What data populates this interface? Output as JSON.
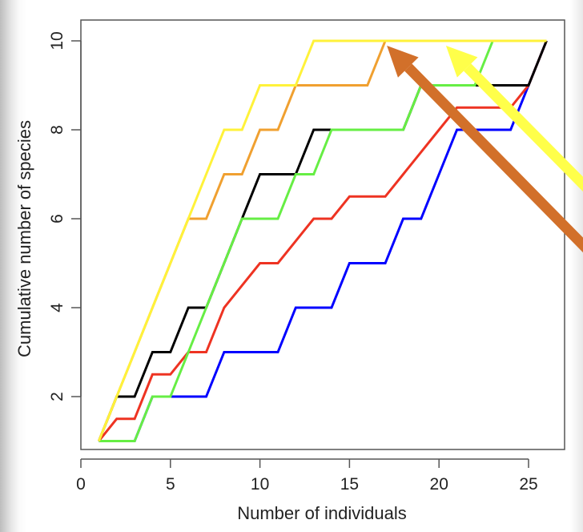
{
  "chart_data": {
    "type": "line",
    "title": "",
    "xlabel": "Number of individuals",
    "ylabel": "Cumulative number of species",
    "xlim": [
      0,
      27
    ],
    "ylim": [
      0.8,
      10.5
    ],
    "xticks": [
      "0",
      "5",
      "10",
      "15",
      "20",
      "25"
    ],
    "yticks": [
      "2",
      "4",
      "6",
      "8",
      "10"
    ],
    "grid": false,
    "x": [
      1,
      2,
      3,
      4,
      5,
      6,
      7,
      8,
      9,
      10,
      11,
      12,
      13,
      14,
      15,
      16,
      17,
      18,
      19,
      20,
      21,
      22,
      23,
      24,
      25,
      26
    ],
    "series": [
      {
        "color": "#0000FF",
        "values": [
          1,
          1,
          1,
          2,
          2,
          2,
          2,
          3,
          3,
          3,
          3,
          4,
          4,
          4,
          5,
          5,
          5,
          6,
          6,
          7,
          8,
          8,
          8,
          8,
          9,
          10
        ]
      },
      {
        "color": "#EE3322",
        "values": [
          1,
          1.5,
          1.5,
          2.5,
          2.5,
          3,
          3,
          4,
          4.5,
          5,
          5,
          5.5,
          6,
          6,
          6.5,
          6.5,
          6.5,
          7,
          7.5,
          8,
          8.5,
          8.5,
          8.5,
          8.5,
          9,
          10
        ]
      },
      {
        "color": "#000000",
        "values": [
          1,
          2,
          2,
          3,
          3,
          4,
          4,
          5,
          6,
          7,
          7,
          7,
          8,
          8,
          8,
          8,
          8,
          8,
          9,
          9,
          9,
          9,
          9,
          9,
          9,
          10
        ]
      },
      {
        "color": "#66EE44",
        "values": [
          1,
          1,
          1,
          2,
          2,
          3,
          4,
          5,
          6,
          6,
          6,
          7,
          7,
          8,
          8,
          8,
          8,
          8,
          9,
          9,
          9,
          9,
          10,
          10,
          10,
          10
        ]
      },
      {
        "color": "#F0A030",
        "values": [
          1,
          2,
          3,
          4,
          5,
          6,
          6,
          7,
          7,
          8,
          8,
          9,
          9,
          9,
          9,
          9,
          10,
          10,
          10,
          10,
          10,
          10,
          10,
          10,
          10,
          10
        ]
      },
      {
        "color": "#FFF23A",
        "values": [
          1,
          2,
          3,
          4,
          5,
          6,
          7,
          8,
          8,
          9,
          9,
          9,
          10,
          10,
          10,
          10,
          10,
          10,
          10,
          10,
          10,
          10,
          10,
          10,
          10,
          10
        ]
      }
    ],
    "annotations": [
      {
        "type": "arrow",
        "color": "#D2702A",
        "points_to": [
          17,
          10
        ]
      },
      {
        "type": "arrow",
        "color": "#FFFF4A",
        "points_to": [
          20.3,
          10
        ]
      }
    ]
  }
}
